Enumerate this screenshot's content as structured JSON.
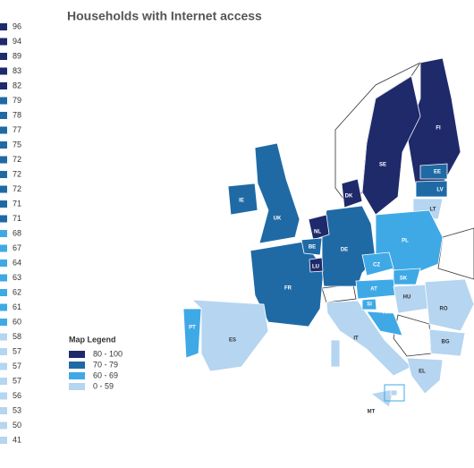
{
  "header": {
    "title": "Households with Internet access"
  },
  "ranking": [
    {
      "value": 96,
      "color": "#1f2a6b"
    },
    {
      "value": 94,
      "color": "#1f2a6b"
    },
    {
      "value": 89,
      "color": "#1f2a6b"
    },
    {
      "value": 83,
      "color": "#1f2a6b"
    },
    {
      "value": 82,
      "color": "#1f2a6b"
    },
    {
      "value": 79,
      "color": "#1f6aa5"
    },
    {
      "value": 78,
      "color": "#1f6aa5"
    },
    {
      "value": 77,
      "color": "#1f6aa5"
    },
    {
      "value": 75,
      "color": "#1f6aa5"
    },
    {
      "value": 72,
      "color": "#1f6aa5"
    },
    {
      "value": 72,
      "color": "#1f6aa5"
    },
    {
      "value": 72,
      "color": "#1f6aa5"
    },
    {
      "value": 71,
      "color": "#1f6aa5"
    },
    {
      "value": 71,
      "color": "#1f6aa5"
    },
    {
      "value": 68,
      "color": "#3fa9e6"
    },
    {
      "value": 67,
      "color": "#3fa9e6"
    },
    {
      "value": 64,
      "color": "#3fa9e6"
    },
    {
      "value": 63,
      "color": "#3fa9e6"
    },
    {
      "value": 62,
      "color": "#3fa9e6"
    },
    {
      "value": 61,
      "color": "#3fa9e6"
    },
    {
      "value": 60,
      "color": "#3fa9e6"
    },
    {
      "value": 58,
      "color": "#b5d5f0"
    },
    {
      "value": 57,
      "color": "#b5d5f0"
    },
    {
      "value": 57,
      "color": "#b5d5f0"
    },
    {
      "value": 57,
      "color": "#b5d5f0"
    },
    {
      "value": 56,
      "color": "#b5d5f0"
    },
    {
      "value": 53,
      "color": "#b5d5f0"
    },
    {
      "value": 50,
      "color": "#b5d5f0"
    },
    {
      "value": 41,
      "color": "#b5d5f0"
    }
  ],
  "legend": {
    "title": "Map Legend",
    "items": [
      {
        "label": "80 - 100",
        "color": "#1f2a6b"
      },
      {
        "label": "70 - 79",
        "color": "#1f6aa5"
      },
      {
        "label": "60 - 69",
        "color": "#3fa9e6"
      },
      {
        "label": "0 - 59",
        "color": "#b5d5f0"
      }
    ]
  },
  "countries": [
    {
      "code": "FI",
      "color": "#1f2a6b"
    },
    {
      "code": "SE",
      "color": "#1f2a6b"
    },
    {
      "code": "EE",
      "color": "#1f6aa5"
    },
    {
      "code": "LV",
      "color": "#1f6aa5"
    },
    {
      "code": "LT",
      "color": "#b5d5f0"
    },
    {
      "code": "DK",
      "color": "#1f2a6b"
    },
    {
      "code": "IE",
      "color": "#1f6aa5"
    },
    {
      "code": "UK",
      "color": "#1f6aa5"
    },
    {
      "code": "NL",
      "color": "#1f2a6b"
    },
    {
      "code": "BE",
      "color": "#1f6aa5"
    },
    {
      "code": "LU",
      "color": "#1f2a6b"
    },
    {
      "code": "DE",
      "color": "#1f6aa5"
    },
    {
      "code": "PL",
      "color": "#3fa9e6"
    },
    {
      "code": "CZ",
      "color": "#3fa9e6"
    },
    {
      "code": "SK",
      "color": "#3fa9e6"
    },
    {
      "code": "AT",
      "color": "#3fa9e6"
    },
    {
      "code": "HU",
      "color": "#b5d5f0"
    },
    {
      "code": "SI",
      "color": "#3fa9e6"
    },
    {
      "code": "HR",
      "color": "#3fa9e6"
    },
    {
      "code": "RO",
      "color": "#b5d5f0"
    },
    {
      "code": "FR",
      "color": "#1f6aa5"
    },
    {
      "code": "ES",
      "color": "#b5d5f0"
    },
    {
      "code": "PT",
      "color": "#3fa9e6"
    },
    {
      "code": "IT",
      "color": "#b5d5f0"
    },
    {
      "code": "BG",
      "color": "#b5d5f0"
    },
    {
      "code": "EL",
      "color": "#b5d5f0"
    },
    {
      "code": "MT",
      "color": "#b5d5f0"
    }
  ]
}
